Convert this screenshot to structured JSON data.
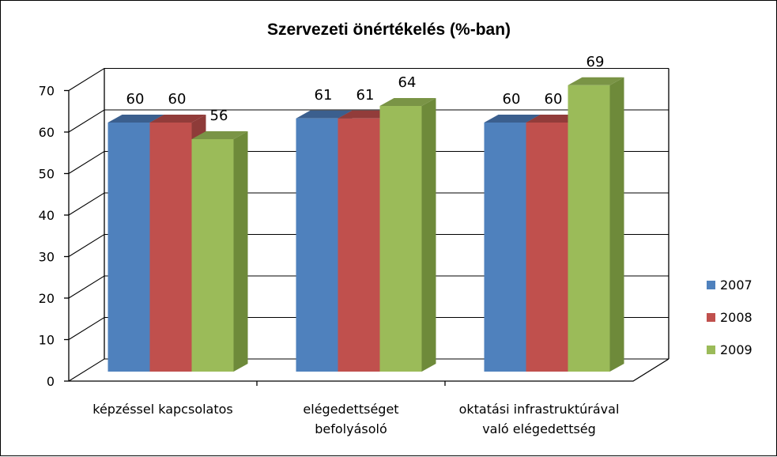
{
  "chart_data": {
    "type": "bar",
    "title": "Szervezeti önértékelés (%-ban)",
    "categories": [
      [
        "képzéssel kapcsolatos"
      ],
      [
        "elégedettséget",
        "befolyásoló"
      ],
      [
        "oktatási infrastruktúrával",
        "való elégedettség"
      ]
    ],
    "series": [
      {
        "name": "2007",
        "values": [
          60,
          61,
          60
        ],
        "color": "#4F81BD",
        "top": "#3B5F8E",
        "side": "#38618F"
      },
      {
        "name": "2008",
        "values": [
          60,
          61,
          60
        ],
        "color": "#C0504D",
        "top": "#923C3A",
        "side": "#8E3B39"
      },
      {
        "name": "2009",
        "values": [
          56,
          64,
          69
        ],
        "color": "#9BBB59",
        "top": "#7A9446",
        "side": "#6E8A3A"
      }
    ],
    "ylim": [
      0,
      70
    ],
    "yticks": [
      0,
      10,
      20,
      30,
      40,
      50,
      60,
      70
    ],
    "grid": true,
    "legend": "right",
    "style": "3d-clustered-column"
  }
}
